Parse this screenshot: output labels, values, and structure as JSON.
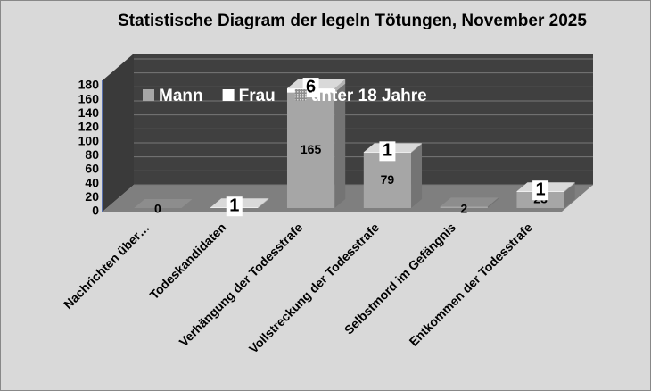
{
  "chart_data": {
    "type": "bar3d_stacked",
    "title": "Statistische Diagram der legeln Tötungen, November 2025",
    "categories": [
      "Nachrichten über…",
      "Todeskandidaten",
      "Verhängung der Todesstrafe",
      "Vollstreckung der Todesstrafe",
      "Selbstmord im Gefängnis",
      "Entkommen der Todesstrafe"
    ],
    "series": [
      {
        "name": "Mann",
        "color": "#a6a6a6",
        "values": [
          0,
          null,
          165,
          79,
          2,
          23
        ]
      },
      {
        "name": "Frau",
        "color": "#ffffff",
        "values": [
          null,
          1,
          6,
          1,
          null,
          1
        ]
      },
      {
        "name": "unter 18 Jahre",
        "color": "#bfbfbf",
        "values": [
          null,
          null,
          null,
          null,
          null,
          null
        ]
      }
    ],
    "ylim": [
      0,
      180
    ],
    "yticks": [
      0,
      20,
      40,
      60,
      80,
      100,
      120,
      140,
      160,
      180
    ],
    "grid": true
  }
}
